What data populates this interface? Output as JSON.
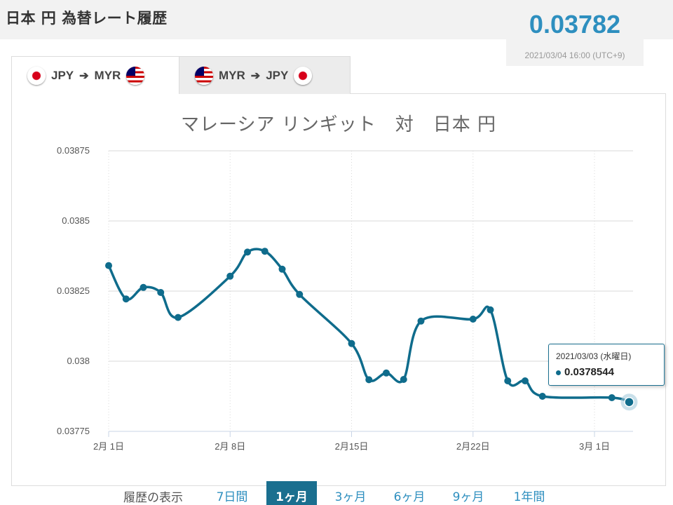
{
  "header": {
    "title": "日本 円 為替レート履歴",
    "current_rate": "0.03782",
    "timestamp": "2021/03/04 16:00 (UTC+9)"
  },
  "tabs": [
    {
      "from": "JPY",
      "to": "MYR",
      "from_flag": "japan-flag-icon",
      "to_flag": "malaysia-flag-icon",
      "active": true
    },
    {
      "from": "MYR",
      "to": "JPY",
      "from_flag": "malaysia-flag-icon",
      "to_flag": "japan-flag-icon",
      "active": false
    }
  ],
  "tab_arrow": "➔",
  "tooltip": {
    "date": "2021/03/03 (水曜日)",
    "value": "0.0378544"
  },
  "range_selector": {
    "label": "履歴の表示",
    "options": [
      "7日間",
      "1ヶ月",
      "3ヶ月",
      "6ヶ月",
      "9ヶ月",
      "1年間"
    ],
    "active_index": 1
  },
  "colors": {
    "line": "#0f6c8c",
    "accent": "#2e8fbf",
    "active_button": "#1a6f8f"
  },
  "chart_data": {
    "type": "line",
    "title": "マレーシア リンギット　対　日本 円",
    "xlabel": "",
    "ylabel": "",
    "x_tick_labels": [
      "2月 1日",
      "2月 8日",
      "2月15日",
      "2月22日",
      "3月 1日"
    ],
    "y_tick_labels": [
      "0.03775",
      "0.038",
      "0.03825",
      "0.0385",
      "0.03875"
    ],
    "ylim": [
      0.03775,
      0.03875
    ],
    "grid": true,
    "legend": "none",
    "series": [
      {
        "values": [
          {
            "x": "2021-02-01",
            "y": 0.038341
          },
          {
            "x": "2021-02-02",
            "y": 0.038222
          },
          {
            "x": "2021-02-03",
            "y": 0.038263
          },
          {
            "x": "2021-02-04",
            "y": 0.038245
          },
          {
            "x": "2021-02-05",
            "y": 0.038156
          },
          {
            "x": "2021-02-08",
            "y": 0.038303
          },
          {
            "x": "2021-02-09",
            "y": 0.038389
          },
          {
            "x": "2021-02-10",
            "y": 0.038392
          },
          {
            "x": "2021-02-11",
            "y": 0.038328
          },
          {
            "x": "2021-02-12",
            "y": 0.038238
          },
          {
            "x": "2021-02-15",
            "y": 0.038063
          },
          {
            "x": "2021-02-16",
            "y": 0.037934
          },
          {
            "x": "2021-02-17",
            "y": 0.037958
          },
          {
            "x": "2021-02-18",
            "y": 0.037935
          },
          {
            "x": "2021-02-19",
            "y": 0.038143
          },
          {
            "x": "2021-02-22",
            "y": 0.03815
          },
          {
            "x": "2021-02-23",
            "y": 0.038183
          },
          {
            "x": "2021-02-24",
            "y": 0.03793
          },
          {
            "x": "2021-02-25",
            "y": 0.03793
          },
          {
            "x": "2021-02-26",
            "y": 0.037875
          },
          {
            "x": "2021-03-02",
            "y": 0.03787
          },
          {
            "x": "2021-03-03",
            "y": 0.0378544
          }
        ]
      }
    ],
    "highlighted_point": {
      "x": "2021-03-03",
      "y": 0.0378544
    }
  }
}
